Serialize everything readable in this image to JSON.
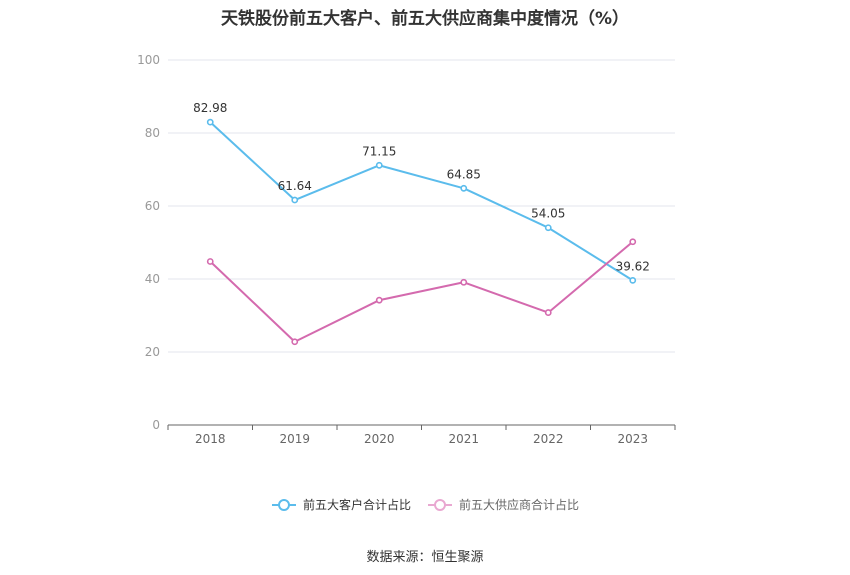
{
  "chart_data": {
    "type": "line",
    "title": "天铁股份前五大客户、前五大供应商集中度情况（%）",
    "categories": [
      "2018",
      "2019",
      "2020",
      "2021",
      "2022",
      "2023"
    ],
    "ylim": [
      0,
      100
    ],
    "yticks": [
      0,
      20,
      40,
      60,
      80,
      100
    ],
    "grid": true,
    "legend_position": "bottom",
    "series": [
      {
        "name": "前五大客户合计占比",
        "color": "#5bbcec",
        "values": [
          82.98,
          61.64,
          71.15,
          64.85,
          54.05,
          39.62
        ],
        "labels": [
          "82.98",
          "61.64",
          "71.15",
          "64.85",
          "54.05",
          "39.62"
        ]
      },
      {
        "name": "前五大供应商合计占比",
        "color": "#d46aae",
        "values": [
          44.8,
          22.8,
          34.2,
          39.1,
          30.8,
          50.2
        ],
        "labels": [
          "",
          "",
          "",
          "",
          "",
          ""
        ]
      }
    ]
  },
  "source": "数据来源：恒生聚源"
}
